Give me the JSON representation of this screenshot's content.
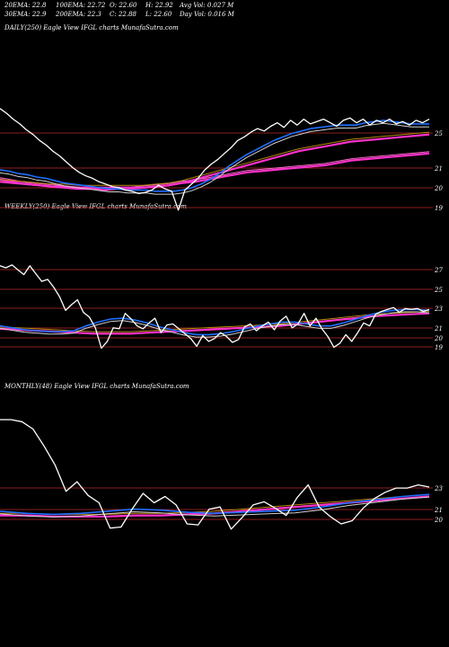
{
  "header": {
    "ema20": "20EMA: 22.8",
    "ema100": "100EMA: 22.72",
    "open": "O: 22.60",
    "high": "H: 22.92",
    "avg_vol": "Avg Vol: 0.027 M",
    "ema30": "30EMA: 22.9",
    "ema200": "200EMA: 22.3",
    "close": "C: 22.88",
    "low": "L: 22.60",
    "day_vol": "Day Vol: 0.016 M"
  },
  "colors": {
    "background": "#000000",
    "price": "#ffffff",
    "ema_blue": "#1f6fff",
    "ema_magenta": "#ff33cc",
    "ema_pink": "#ff66cc",
    "ema_brown": "#b8860b",
    "ema_gray": "#d0d0d0",
    "gridline": "#8b2020"
  },
  "chart_data": [
    {
      "type": "line",
      "label": "DAILY(250) Eagle View IFGL charts MunafaSutra.com",
      "yticks": [
        25,
        21,
        20,
        19
      ],
      "series_note": "price with 20/30/100/200 EMAs",
      "price": [
        26.8,
        26.4,
        25.9,
        25.5,
        25.0,
        24.6,
        24.1,
        23.7,
        23.2,
        22.8,
        22.3,
        21.8,
        21.4,
        21.1,
        20.9,
        20.6,
        20.4,
        20.2,
        20.1,
        19.9,
        19.8,
        19.6,
        19.7,
        19.9,
        20.3,
        20.0,
        19.8,
        18.2,
        19.9,
        20.4,
        20.9,
        21.6,
        22.1,
        22.5,
        23.0,
        23.5,
        24.1,
        24.4,
        24.8,
        25.1,
        24.9,
        25.3,
        25.6,
        25.2,
        25.8,
        25.4,
        25.9,
        25.5,
        25.7,
        25.9,
        25.6,
        25.3,
        25.8,
        26.0,
        25.6,
        25.9,
        25.4,
        25.8,
        25.6,
        25.9,
        25.5,
        25.7,
        25.4,
        25.8,
        25.6,
        25.9
      ],
      "ema_fast": [
        21.6,
        21.5,
        21.3,
        21.2,
        21.0,
        20.9,
        20.7,
        20.5,
        20.4,
        20.3,
        20.2,
        20.1,
        20.0,
        20.0,
        19.9,
        19.9,
        19.9,
        19.8,
        19.8,
        19.8,
        19.9,
        20.1,
        20.4,
        20.8,
        21.3,
        21.9,
        22.4,
        22.9,
        23.3,
        23.7,
        24.1,
        24.4,
        24.7,
        24.9,
        25.1,
        25.2,
        25.3,
        25.4,
        25.4,
        25.4,
        25.6,
        25.7,
        25.8,
        25.7,
        25.6,
        25.5,
        25.5,
        25.5
      ],
      "ema_slow": [
        20.6,
        20.5,
        20.4,
        20.3,
        20.2,
        20.2,
        20.1,
        20.1,
        20.1,
        20.1,
        20.1,
        20.1,
        20.2,
        20.3,
        20.5,
        20.8,
        21.1,
        21.4,
        21.7,
        22.0,
        22.3,
        22.6,
        22.9,
        23.2,
        23.4,
        23.6,
        23.8,
        24.0,
        24.1,
        24.2,
        24.3,
        24.4,
        24.5,
        24.6
      ],
      "ema_200": [
        20.8,
        20.6,
        20.4,
        20.3,
        20.2,
        20.1,
        20.0,
        20.0,
        19.9,
        20.0,
        20.0,
        20.1,
        20.2,
        20.3,
        20.5,
        20.6,
        20.8,
        21.0,
        21.2,
        21.4,
        21.5,
        21.6,
        21.7,
        21.8,
        21.9,
        22.0,
        22.2,
        22.4,
        22.5,
        22.6,
        22.7,
        22.8,
        22.9,
        23.0
      ]
    },
    {
      "type": "line",
      "label": "WEEKLY(250) Eagle View IFGL charts MunafaSutra.com",
      "yticks": [
        27,
        25,
        23,
        21,
        20,
        19
      ],
      "series_note": "price with 20/30/100/200 EMAs",
      "price": [
        27.4,
        27.2,
        27.5,
        27.0,
        26.5,
        27.4,
        26.6,
        25.8,
        26.0,
        25.2,
        24.2,
        22.8,
        23.4,
        23.9,
        22.6,
        22.1,
        21.0,
        18.9,
        19.6,
        21.0,
        20.9,
        22.5,
        21.9,
        21.2,
        20.9,
        21.5,
        22.0,
        20.5,
        21.3,
        21.4,
        20.9,
        20.4,
        19.9,
        19.1,
        20.2,
        19.6,
        19.9,
        20.5,
        20.1,
        19.5,
        19.8,
        21.1,
        21.4,
        20.7,
        21.2,
        21.6,
        20.8,
        21.7,
        22.2,
        21.0,
        21.4,
        22.5,
        21.2,
        22.0,
        20.9,
        20.1,
        19.0,
        19.4,
        20.3,
        19.6,
        20.5,
        21.5,
        21.2,
        22.4,
        22.7,
        22.9,
        23.1,
        22.6,
        23.0,
        22.9,
        23.0,
        22.7,
        22.9
      ],
      "ema_fast": [
        21.2,
        21.0,
        20.8,
        20.7,
        20.6,
        20.6,
        20.7,
        21.2,
        21.6,
        21.9,
        22.0,
        21.8,
        21.5,
        21.1,
        20.8,
        20.5,
        20.3,
        20.3,
        20.4,
        20.6,
        20.9,
        21.2,
        21.4,
        21.6,
        21.6,
        21.4,
        21.2,
        21.2,
        21.5,
        21.9,
        22.3,
        22.6,
        22.8,
        22.9,
        22.9,
        22.8
      ],
      "ema_slow": [
        20.9,
        20.8,
        20.7,
        20.6,
        20.5,
        20.4,
        20.4,
        20.4,
        20.5,
        20.6,
        20.7,
        20.8,
        20.9,
        21.0,
        21.1,
        21.2,
        21.4,
        21.6,
        21.8,
        22.0,
        22.2,
        22.3,
        22.4,
        22.5
      ]
    },
    {
      "type": "line",
      "label": "MONTHLY(48) Eagle View IFGL charts MunafaSutra.com",
      "yticks": [
        23,
        21,
        20
      ],
      "series_note": "price with 20/30/100/200 EMAs",
      "price": [
        29.5,
        29.5,
        29.3,
        28.6,
        27.0,
        25.2,
        22.7,
        23.6,
        22.3,
        21.6,
        19.2,
        19.3,
        21.0,
        22.5,
        21.6,
        22.2,
        21.4,
        19.6,
        19.5,
        21.0,
        21.2,
        19.1,
        20.2,
        21.4,
        21.7,
        21.1,
        20.4,
        22.1,
        23.3,
        21.2,
        20.3,
        19.6,
        19.9,
        21.1,
        22.0,
        22.6,
        23.0,
        23.0,
        23.3,
        23.1
      ],
      "ema_fast": [
        20.8,
        20.6,
        20.5,
        20.6,
        20.8,
        21.0,
        20.9,
        20.7,
        20.6,
        20.7,
        20.8,
        20.9,
        21.2,
        21.6,
        21.9,
        22.2,
        22.4
      ],
      "ema_slow": [
        20.4,
        20.4,
        20.3,
        20.3,
        20.3,
        20.4,
        20.4,
        20.5,
        20.6,
        20.8,
        21.0,
        21.2,
        21.4,
        21.6,
        21.8,
        22.0,
        22.2
      ]
    }
  ]
}
